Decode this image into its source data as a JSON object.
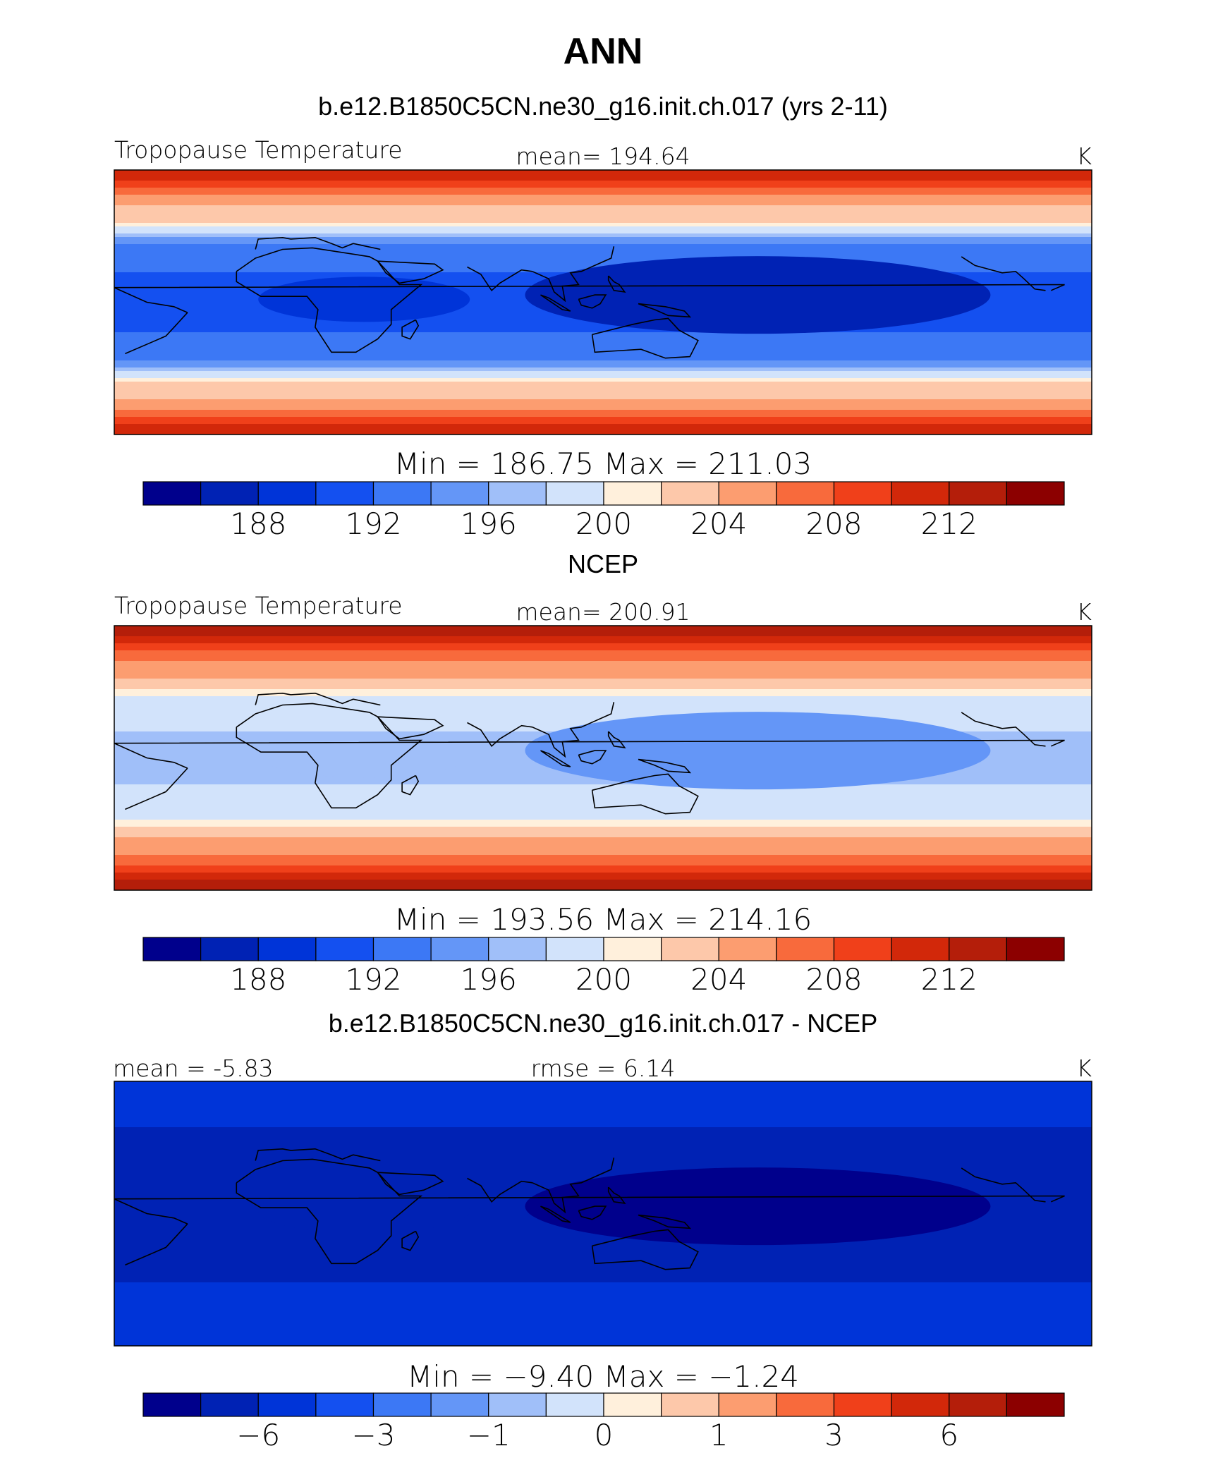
{
  "figure": {
    "title": "ANN",
    "colors": [
      "#00008c",
      "#0022b4",
      "#0034d8",
      "#1450f0",
      "#3c78f5",
      "#6496f7",
      "#a0bff9",
      "#d2e3fb",
      "#fff0dc",
      "#fdc8aa",
      "#fc9d70",
      "#f86a3c",
      "#f0401a",
      "#d2280a",
      "#b41e0a",
      "#8c0000"
    ]
  },
  "chart_data": [
    {
      "type": "heatmap",
      "subtitle": "b.e12.B1850C5CN.ne30_g16.init.ch.017 (yrs 2-11)",
      "left_label": "Tropopause  Temperature",
      "center_label": "mean=  194.64",
      "units": "K",
      "min_max_label": "Min  =  186.75  Max  =  211.03",
      "min": 186.75,
      "max": 211.03,
      "mean": 194.64,
      "colorbar_levels": [
        186,
        188,
        190,
        192,
        194,
        196,
        198,
        200,
        202,
        204,
        206,
        208,
        210,
        212,
        214
      ],
      "colorbar_ticks": [
        "188",
        "192",
        "196",
        "200",
        "204",
        "208",
        "212"
      ],
      "regions": {
        "pole_north": 211,
        "midlat_north": 203,
        "subtrop_north": 193,
        "tropics": 190,
        "west_pacific": 187,
        "africa_band": 189,
        "subtrop_south": 193,
        "midlat_south": 203,
        "pole_south": 211
      }
    },
    {
      "type": "heatmap",
      "subtitle": "NCEP",
      "left_label": "Tropopause  Temperature",
      "center_label": "mean=  200.91",
      "units": "K",
      "min_max_label": "Min  =  193.56  Max  =  214.16",
      "min": 193.56,
      "max": 214.16,
      "mean": 200.91,
      "colorbar_levels": [
        186,
        188,
        190,
        192,
        194,
        196,
        198,
        200,
        202,
        204,
        206,
        208,
        210,
        212,
        214
      ],
      "colorbar_ticks": [
        "188",
        "192",
        "196",
        "200",
        "204",
        "208",
        "212"
      ],
      "regions": {
        "pole_north": 213,
        "midlat_north": 205,
        "subtrop_north": 199,
        "tropics": 197,
        "west_pacific": 195,
        "africa_band": 197,
        "subtrop_south": 199,
        "midlat_south": 205,
        "pole_south": 213
      }
    },
    {
      "type": "heatmap",
      "subtitle": "b.e12.B1850C5CN.ne30_g16.init.ch.017 - NCEP",
      "left_label": "mean =   -5.83",
      "center_label": "rmse =     6.14",
      "units": "K",
      "min_max_label": "Min  =    −9.40  Max  =    −1.24",
      "min": -9.4,
      "max": -1.24,
      "mean": -5.83,
      "rmse": 6.14,
      "colorbar_levels": [
        -8,
        -6,
        -5,
        -4,
        -3,
        -2,
        -1,
        -0.5,
        0,
        0.5,
        1,
        2,
        3,
        4,
        6
      ],
      "colorbar_ticks": [
        "−6",
        "−3",
        "−1",
        "0",
        "1",
        "3",
        "6"
      ],
      "regions": {
        "pole_north": -5,
        "midlat_north": -6,
        "subtrop_north": -6.5,
        "tropics": -8,
        "west_pacific": -9,
        "africa_band": -8,
        "subtrop_south": -6.5,
        "midlat_south": -5.5,
        "pole_south": -5
      }
    }
  ]
}
